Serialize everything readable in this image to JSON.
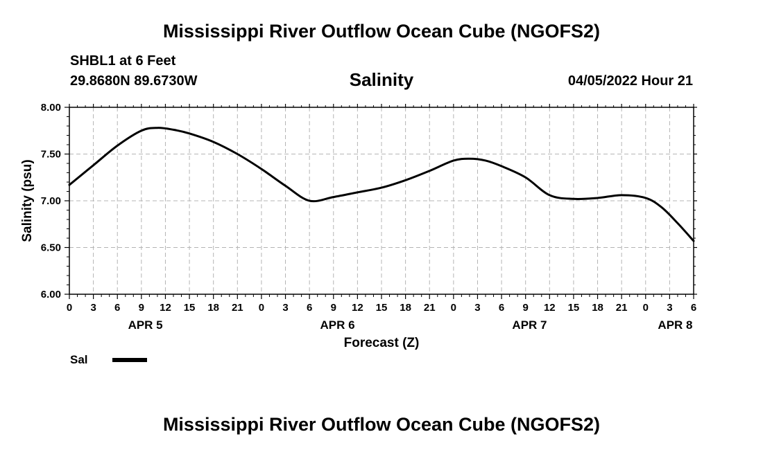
{
  "header": {
    "title": "Mississippi River Outflow Ocean Cube (NGOFS2)",
    "station": "SHBL1 at 6 Feet",
    "coordinates": "29.8680N  89.6730W",
    "subtitle": "Salinity",
    "timestamp": "04/05/2022 Hour 21"
  },
  "footer": {
    "title": "Mississippi River Outflow Ocean Cube (NGOFS2)"
  },
  "legend": {
    "label": "Sal"
  },
  "chart_data": {
    "type": "line",
    "title": "Salinity",
    "xlabel": "Forecast (Z)",
    "ylabel": "Salinity (psu)",
    "xlim": [
      0,
      78
    ],
    "ylim": [
      6.0,
      8.0
    ],
    "y_ticks": [
      "6.00",
      "6.50",
      "7.00",
      "7.50",
      "8.00"
    ],
    "y_tick_values": [
      6.0,
      6.5,
      7.0,
      7.5,
      8.0
    ],
    "x_tick_labels": [
      "0",
      "3",
      "6",
      "9",
      "12",
      "15",
      "18",
      "21",
      "0",
      "3",
      "6",
      "9",
      "12",
      "15",
      "18",
      "21",
      "0",
      "3",
      "6",
      "9",
      "12",
      "15",
      "18",
      "21",
      "0",
      "3",
      "6"
    ],
    "x_minor_step_hours": 1,
    "day_labels": [
      {
        "label": "APR 5",
        "hour": 9.5
      },
      {
        "label": "APR 6",
        "hour": 33.5
      },
      {
        "label": "APR 7",
        "hour": 57.5
      },
      {
        "label": "APR 8",
        "hour": 75.7
      }
    ],
    "grid": true,
    "series": [
      {
        "name": "Sal",
        "color": "#000000",
        "x": [
          0,
          3,
          6,
          9,
          11,
          13,
          15,
          18,
          21,
          24,
          27,
          30,
          33,
          36,
          39,
          42,
          45,
          48,
          50,
          52,
          54,
          57,
          60,
          63,
          66,
          69,
          72,
          74,
          76,
          78
        ],
        "y": [
          7.17,
          7.38,
          7.59,
          7.75,
          7.78,
          7.76,
          7.72,
          7.63,
          7.5,
          7.34,
          7.16,
          7.0,
          7.04,
          7.09,
          7.14,
          7.22,
          7.32,
          7.43,
          7.45,
          7.43,
          7.37,
          7.25,
          7.06,
          7.02,
          7.03,
          7.06,
          7.03,
          6.93,
          6.76,
          6.57
        ]
      }
    ]
  }
}
